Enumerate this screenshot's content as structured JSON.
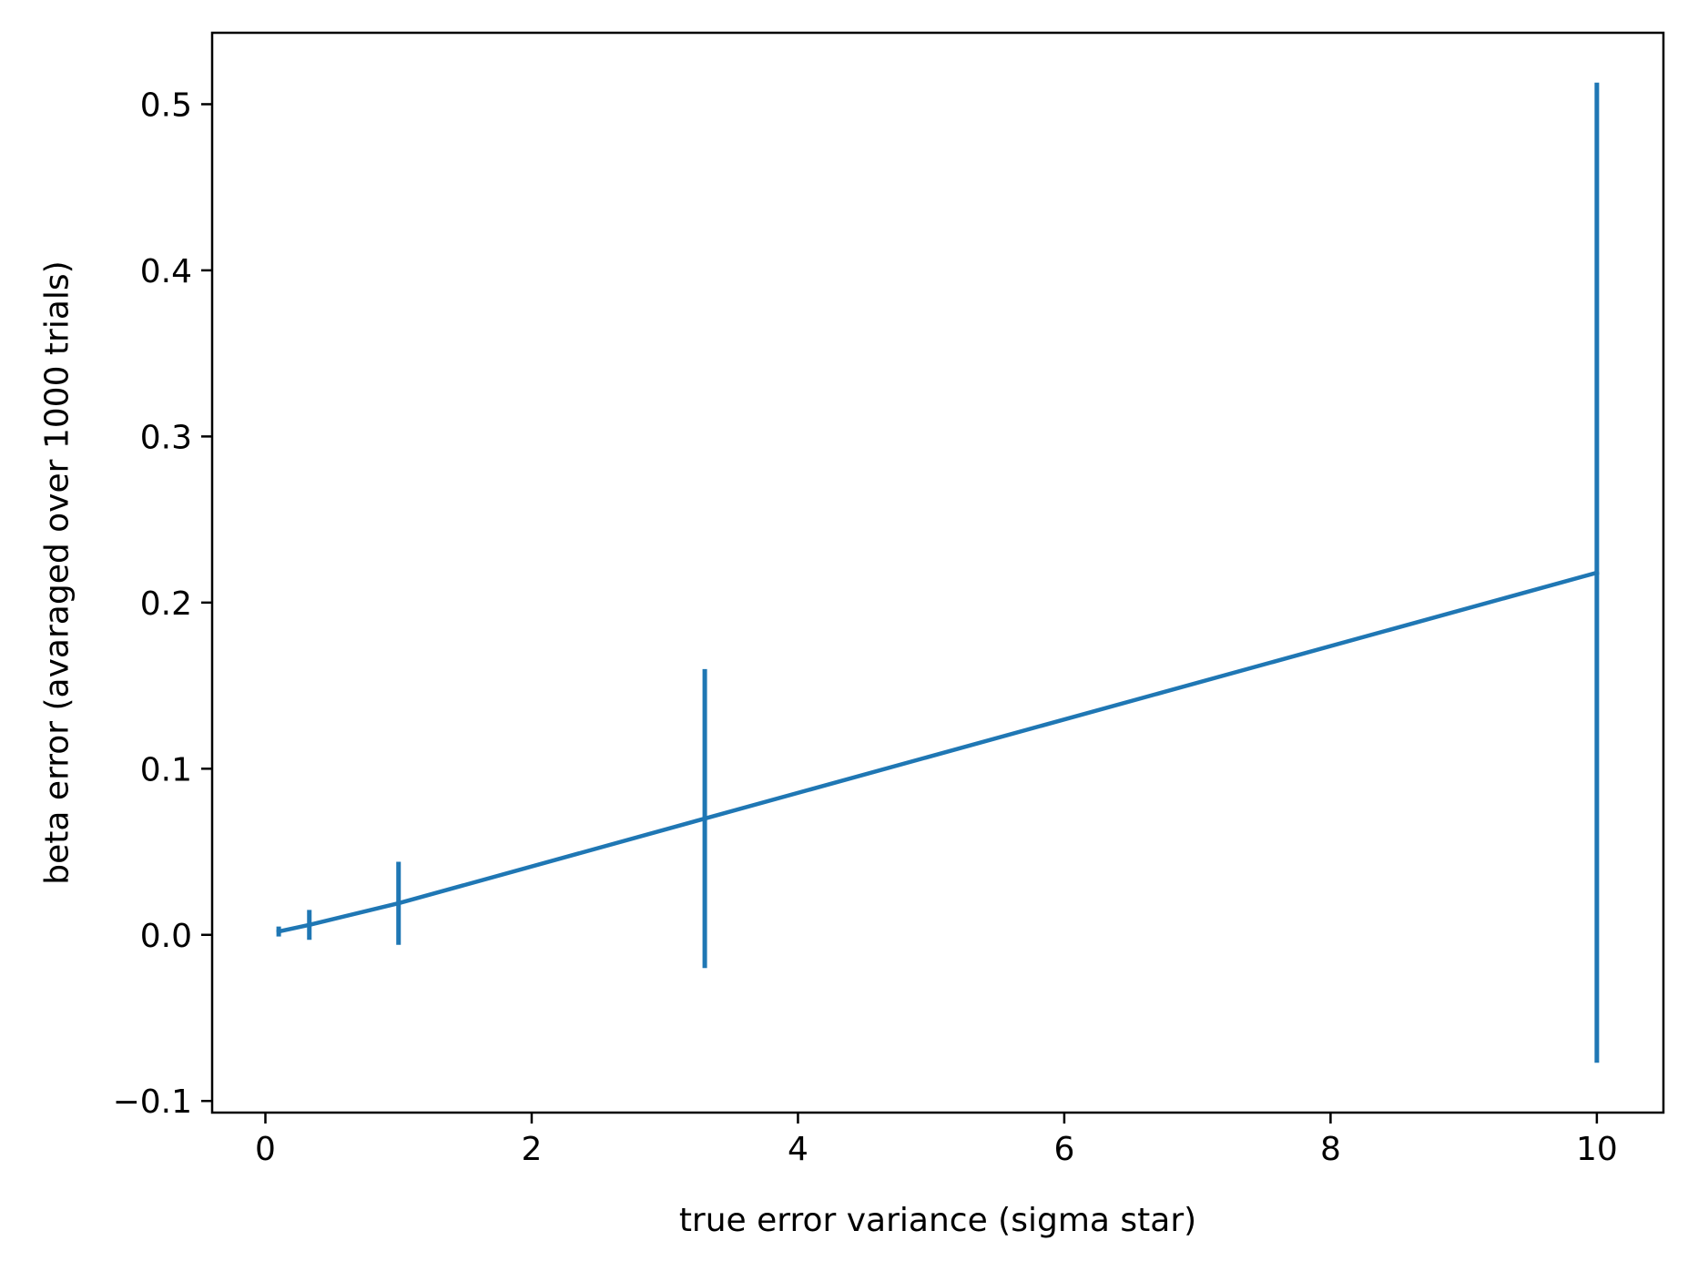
{
  "chart_data": {
    "type": "line",
    "title": "",
    "xlabel": "true error variance (sigma star)",
    "ylabel": "beta error (avaraged over 1000 trials)",
    "xlim": [
      -0.4,
      10.5
    ],
    "ylim": [
      -0.107,
      0.543
    ],
    "x_ticks": [
      0,
      2,
      4,
      6,
      8,
      10
    ],
    "x_tick_labels": [
      "0",
      "2",
      "4",
      "6",
      "8",
      "10"
    ],
    "y_ticks": [
      -0.1,
      0.0,
      0.1,
      0.2,
      0.3,
      0.4,
      0.5
    ],
    "y_tick_labels": [
      "−0.1",
      "0.0",
      "0.1",
      "0.2",
      "0.3",
      "0.4",
      "0.5"
    ],
    "grid": false,
    "series": [
      {
        "x": [
          0.1,
          0.33,
          1.0,
          3.3,
          10.0
        ],
        "y": [
          0.002,
          0.006,
          0.019,
          0.07,
          0.218
        ],
        "yerr": [
          0.003,
          0.009,
          0.025,
          0.09,
          0.295
        ],
        "color": "#1f77b4"
      }
    ]
  }
}
